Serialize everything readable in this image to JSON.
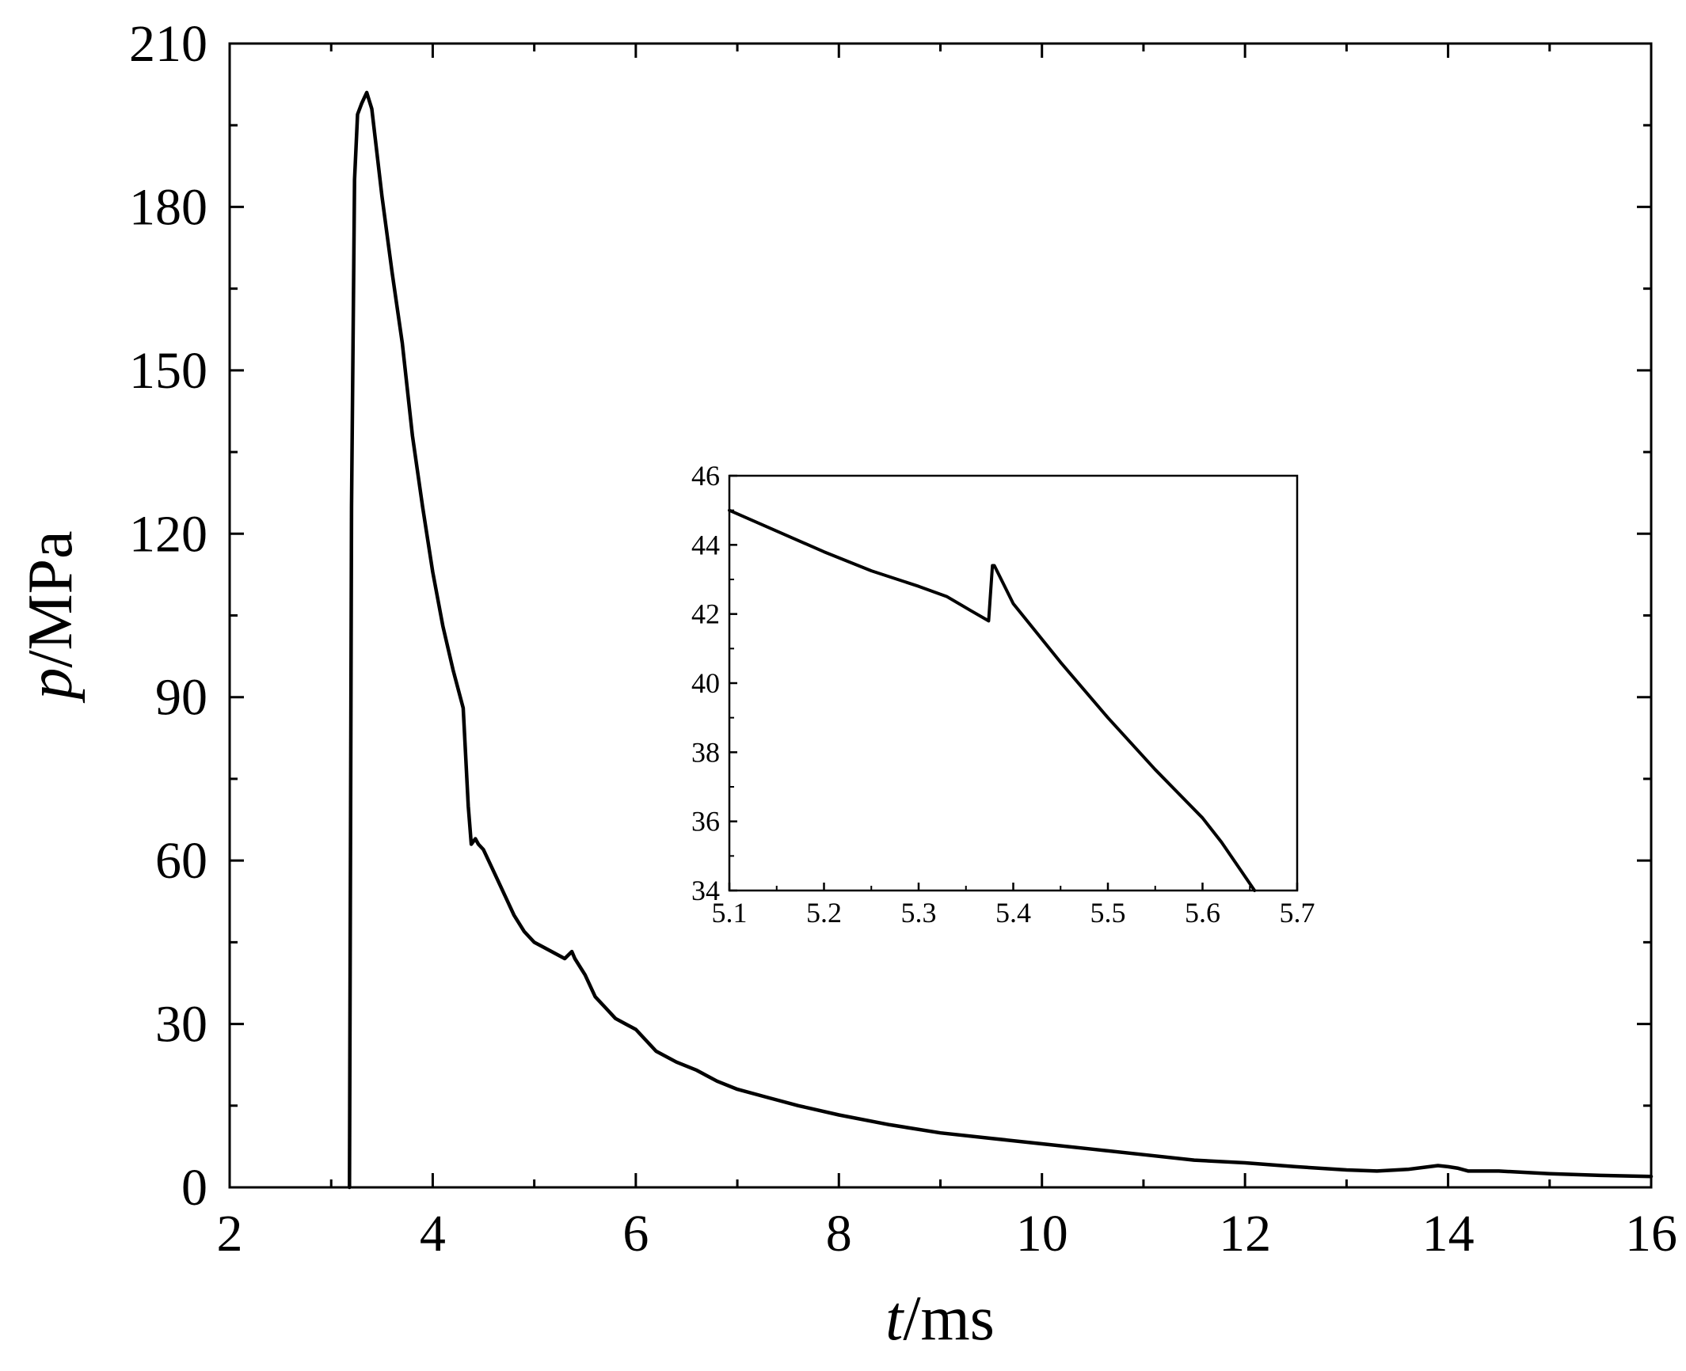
{
  "chart_data": [
    {
      "type": "line",
      "xlabel_var": "t",
      "xlabel_unit": "/ms",
      "ylabel_var": "p",
      "ylabel_unit": "/MPa",
      "xlim": [
        2,
        16
      ],
      "ylim": [
        0,
        210
      ],
      "xticks": [
        2,
        4,
        6,
        8,
        10,
        12,
        14,
        16
      ],
      "yticks": [
        0,
        30,
        60,
        90,
        120,
        150,
        180,
        210
      ],
      "grid": false,
      "series": [
        {
          "color": "#000000",
          "x": [
            3.18,
            3.2,
            3.23,
            3.26,
            3.3,
            3.35,
            3.4,
            3.45,
            3.5,
            3.6,
            3.7,
            3.8,
            3.9,
            4.0,
            4.1,
            4.2,
            4.3,
            4.35,
            4.38,
            4.42,
            4.45,
            4.5,
            4.6,
            4.7,
            4.8,
            4.9,
            5.0,
            5.1,
            5.2,
            5.3,
            5.37,
            5.4,
            5.5,
            5.6,
            5.7,
            5.8,
            5.9,
            6.0,
            6.2,
            6.4,
            6.6,
            6.8,
            7.0,
            7.3,
            7.6,
            8.0,
            8.5,
            9.0,
            9.5,
            10.0,
            10.5,
            11.0,
            11.5,
            12.0,
            12.5,
            13.0,
            13.3,
            13.6,
            13.9,
            14.0,
            14.1,
            14.2,
            14.5,
            15.0,
            15.5,
            16.0
          ],
          "y": [
            0,
            125,
            185,
            197,
            199,
            201,
            198,
            190,
            182,
            168,
            155,
            138,
            125,
            113,
            103,
            95,
            88,
            70,
            63,
            64,
            63,
            62,
            58,
            54,
            50,
            47,
            45,
            44,
            43,
            42,
            43.3,
            42,
            39,
            35,
            33,
            31,
            30,
            29,
            25,
            23,
            21.5,
            19.5,
            18,
            16.5,
            15,
            13.3,
            11.5,
            10,
            9,
            8,
            7,
            6,
            5,
            4.5,
            3.8,
            3.2,
            3,
            3.3,
            4,
            3.8,
            3.5,
            3,
            3,
            2.5,
            2.2,
            2
          ]
        }
      ]
    },
    {
      "type": "line",
      "xlim": [
        5.1,
        5.7
      ],
      "ylim": [
        34,
        46
      ],
      "xticks": [
        "5.1",
        "5.2",
        "5.3",
        "5.4",
        "5.5",
        "5.6",
        "5.7"
      ],
      "yticks": [
        "34",
        "36",
        "38",
        "40",
        "42",
        "44",
        "46"
      ],
      "grid": false,
      "series": [
        {
          "color": "#000000",
          "x": [
            5.1,
            5.15,
            5.2,
            5.25,
            5.3,
            5.33,
            5.355,
            5.374,
            5.378,
            5.38,
            5.4,
            5.45,
            5.5,
            5.55,
            5.6,
            5.62,
            5.64,
            5.655
          ],
          "y": [
            45.0,
            44.4,
            43.8,
            43.25,
            42.8,
            42.5,
            42.1,
            41.8,
            43.4,
            43.4,
            42.3,
            40.6,
            39.0,
            37.5,
            36.1,
            35.4,
            34.6,
            34.0
          ]
        }
      ]
    }
  ]
}
